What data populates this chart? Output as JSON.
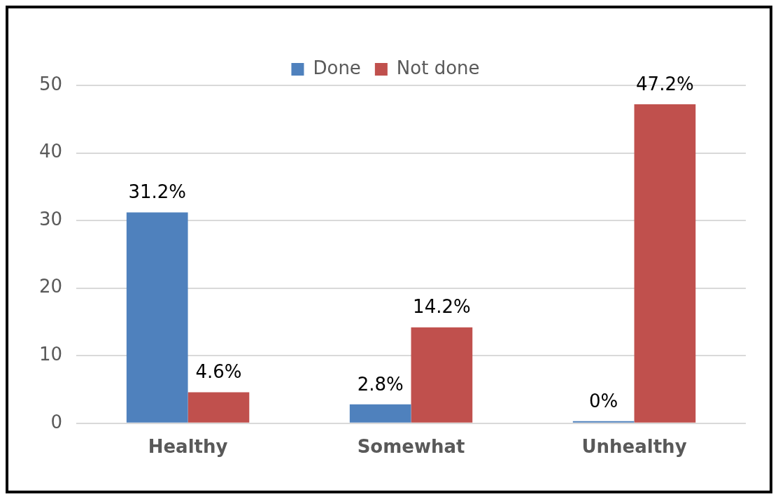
{
  "chart_data": {
    "type": "bar",
    "categories": [
      "Healthy",
      "Somewhat",
      "Unhealthy"
    ],
    "series": [
      {
        "name": "Done",
        "color": "#4f81bd",
        "values": [
          31.2,
          2.8,
          0
        ],
        "value_labels": [
          "31.2%",
          "2.8%",
          "0%"
        ]
      },
      {
        "name": "Not done",
        "color": "#c0504d",
        "values": [
          4.6,
          14.2,
          47.2
        ],
        "value_labels": [
          "4.6%",
          "14.2%",
          "47.2%"
        ]
      }
    ],
    "ylim": [
      0,
      50
    ],
    "yticks": [
      0,
      10,
      20,
      30,
      40,
      50
    ],
    "grid": "y",
    "legend": "top"
  }
}
